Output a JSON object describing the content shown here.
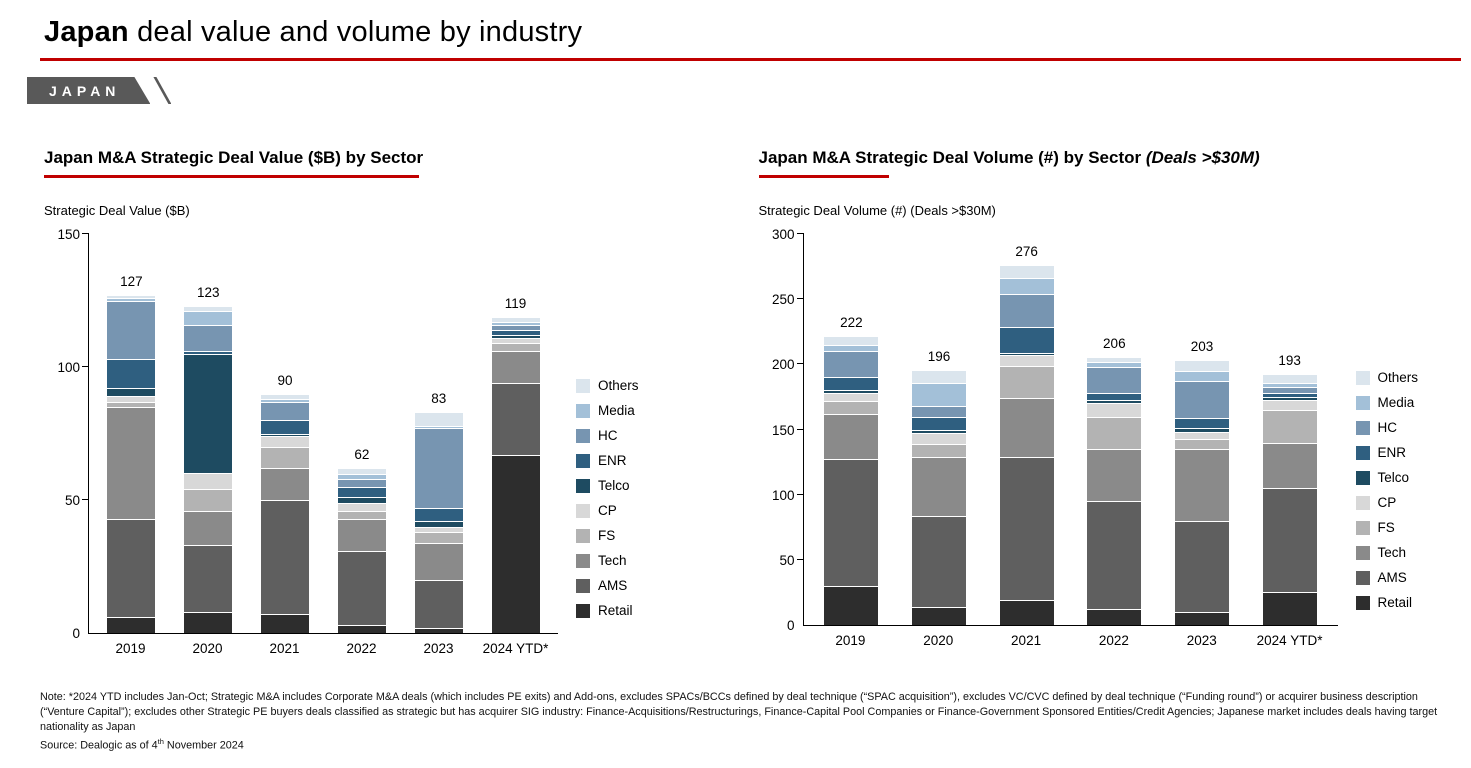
{
  "page": {
    "title_bold": "Japan",
    "title_rest": " deal value and volume by industry",
    "tab_label": "JAPAN"
  },
  "colors": {
    "accent_red": "#C00000",
    "tab_bg": "#595959"
  },
  "sectors": [
    {
      "name": "Retail",
      "color": "#2d2d2d"
    },
    {
      "name": "AMS",
      "color": "#5f5f5f"
    },
    {
      "name": "Tech",
      "color": "#8a8a8a"
    },
    {
      "name": "FS",
      "color": "#b3b3b3"
    },
    {
      "name": "CP",
      "color": "#d8d8d8"
    },
    {
      "name": "Telco",
      "color": "#1e4b61"
    },
    {
      "name": "ENR",
      "color": "#2f5f80"
    },
    {
      "name": "HC",
      "color": "#7795b1"
    },
    {
      "name": "Media",
      "color": "#a3c0d8"
    },
    {
      "name": "Others",
      "color": "#dbe5ed"
    }
  ],
  "legend": [
    "Others",
    "Media",
    "HC",
    "ENR",
    "Telco",
    "CP",
    "FS",
    "Tech",
    "AMS",
    "Retail"
  ],
  "chart_data": [
    {
      "type": "stacked-bar",
      "title": "Japan M&A Strategic Deal Value ($B) by Sector",
      "title_italic": "",
      "ylabel": "Strategic Deal Value ($B)",
      "ylim": [
        0,
        150
      ],
      "yticks": [
        0,
        50,
        100,
        150
      ],
      "categories": [
        "2019",
        "2020",
        "2021",
        "2022",
        "2023",
        "2024 YTD*"
      ],
      "totals": [
        127,
        123,
        90,
        62,
        83,
        119
      ],
      "series": [
        {
          "name": "Retail",
          "values": [
            6,
            8,
            7,
            3,
            2,
            67
          ]
        },
        {
          "name": "AMS",
          "values": [
            37,
            25,
            43,
            28,
            18,
            27
          ]
        },
        {
          "name": "Tech",
          "values": [
            42,
            13,
            12,
            12,
            14,
            12
          ]
        },
        {
          "name": "FS",
          "values": [
            2,
            8,
            8,
            3,
            4,
            3
          ]
        },
        {
          "name": "CP",
          "values": [
            2,
            6,
            4,
            3,
            2,
            2
          ]
        },
        {
          "name": "Telco",
          "values": [
            3,
            45,
            1,
            2,
            2,
            1
          ]
        },
        {
          "name": "ENR",
          "values": [
            11,
            1,
            5,
            4,
            5,
            2
          ]
        },
        {
          "name": "HC",
          "values": [
            22,
            10,
            7,
            3,
            30,
            2
          ]
        },
        {
          "name": "Media",
          "values": [
            1,
            5,
            1,
            2,
            1,
            1
          ]
        },
        {
          "name": "Others",
          "values": [
            1,
            2,
            2,
            2,
            5,
            2
          ]
        }
      ]
    },
    {
      "type": "stacked-bar",
      "title": "Japan M&A Strategic Deal Volume (#) by Sector",
      "title_italic": " (Deals >$30M)",
      "ylabel": "Strategic Deal Volume (#) (Deals >$30M)",
      "ylim": [
        0,
        300
      ],
      "yticks": [
        0,
        50,
        100,
        150,
        200,
        250,
        300
      ],
      "categories": [
        "2019",
        "2020",
        "2021",
        "2022",
        "2023",
        "2024 YTD*"
      ],
      "totals": [
        222,
        196,
        276,
        206,
        203,
        193
      ],
      "series": [
        {
          "name": "Retail",
          "values": [
            30,
            14,
            19,
            12,
            10,
            25
          ]
        },
        {
          "name": "AMS",
          "values": [
            97,
            70,
            110,
            83,
            70,
            80
          ]
        },
        {
          "name": "Tech",
          "values": [
            35,
            45,
            45,
            40,
            55,
            35
          ]
        },
        {
          "name": "FS",
          "values": [
            10,
            10,
            25,
            25,
            8,
            25
          ]
        },
        {
          "name": "CP",
          "values": [
            6,
            8,
            8,
            10,
            5,
            8
          ]
        },
        {
          "name": "Telco",
          "values": [
            2,
            3,
            2,
            3,
            3,
            2
          ]
        },
        {
          "name": "ENR",
          "values": [
            10,
            10,
            20,
            5,
            8,
            3
          ]
        },
        {
          "name": "HC",
          "values": [
            20,
            8,
            25,
            20,
            28,
            5
          ]
        },
        {
          "name": "Media",
          "values": [
            5,
            18,
            12,
            4,
            8,
            3
          ]
        },
        {
          "name": "Others",
          "values": [
            7,
            10,
            10,
            4,
            8,
            7
          ]
        }
      ]
    }
  ],
  "notes": {
    "note_text": "Note: *2024 YTD includes Jan-Oct; Strategic M&A includes Corporate M&A deals (which includes PE exits) and Add-ons, excludes SPACs/BCCs defined by deal technique (“SPAC acquisition”), excludes VC/CVC defined by deal technique (“Funding round”) or acquirer business description (“Venture Capital”); excludes other Strategic PE buyers deals classified as strategic but has acquirer SIG industry: Finance-Acquisitions/Restructurings, Finance-Capital Pool Companies or Finance-Government Sponsored Entities/Credit Agencies; Japanese market includes deals having target nationality as Japan",
    "source_prefix": "Source: Dealogic as of 4",
    "source_sup": "th",
    "source_suffix": " November 2024"
  }
}
